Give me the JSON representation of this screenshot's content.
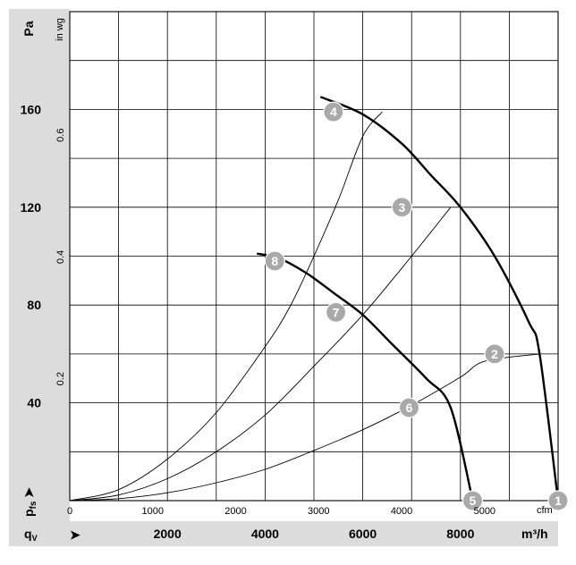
{
  "chart_data": {
    "type": "line",
    "y_axis_left": {
      "unit": "Pa",
      "ticks": [
        40,
        80,
        120,
        160
      ],
      "range": [
        0,
        200
      ]
    },
    "y_axis_inner": {
      "unit": "in wg",
      "ticks": [
        "0.2",
        "0.4",
        "0.6"
      ]
    },
    "x_axis_top": {
      "unit": "cfm",
      "ticks": [
        0,
        1000,
        2000,
        3000,
        4000,
        5000
      ]
    },
    "x_axis_bottom": {
      "unit": "m³/h",
      "ticks": [
        2000,
        4000,
        6000,
        8000
      ],
      "range": [
        0,
        10000
      ]
    },
    "y_symbol": "p",
    "y_symbol_sub": "fs",
    "x_symbol": "q",
    "x_symbol_sub": "V",
    "arrow": "➤",
    "grid": true,
    "series": [
      {
        "kind": "fan-curve",
        "x": [
          5150,
          6000,
          6800,
          7400,
          8000,
          8700,
          9400,
          9620,
          10000
        ],
        "y": [
          165,
          158,
          146,
          133,
          120,
          100,
          73,
          60,
          0
        ]
      },
      {
        "kind": "fan-curve",
        "x": [
          3850,
          4300,
          4850,
          5400,
          6000,
          6600,
          7300,
          7800,
          8250
        ],
        "y": [
          101,
          99,
          93,
          85,
          76,
          64,
          50,
          38,
          0
        ]
      },
      {
        "kind": "system-curve",
        "x": [
          0,
          1000,
          2000,
          3000,
          4000,
          5000,
          6000,
          7000,
          8000,
          8500,
          9620
        ],
        "y": [
          0,
          0.8,
          3.2,
          7.3,
          12.8,
          20.5,
          29,
          39,
          50.5,
          57,
          60
        ]
      },
      {
        "kind": "system-curve",
        "x": [
          0,
          1000,
          2000,
          3000,
          4000,
          5000,
          6000,
          7000,
          7800
        ],
        "y": [
          0,
          2.3,
          9,
          20,
          35,
          55,
          76,
          100,
          120
        ]
      },
      {
        "kind": "system-curve",
        "x": [
          0,
          1000,
          2000,
          3000,
          4000,
          4500,
          5000,
          5500,
          6000,
          6400
        ],
        "y": [
          0,
          4.5,
          17,
          36,
          63,
          79,
          100,
          123,
          149,
          159
        ]
      }
    ],
    "operating_points": [
      {
        "id": "1",
        "x": 10000,
        "y": 0
      },
      {
        "id": "2",
        "x": 8700,
        "y": 60
      },
      {
        "id": "3",
        "x": 6800,
        "y": 120
      },
      {
        "id": "4",
        "x": 5400,
        "y": 159
      },
      {
        "id": "5",
        "x": 8250,
        "y": 0
      },
      {
        "id": "6",
        "x": 6950,
        "y": 38
      },
      {
        "id": "7",
        "x": 5450,
        "y": 77
      },
      {
        "id": "8",
        "x": 4200,
        "y": 98
      }
    ]
  }
}
